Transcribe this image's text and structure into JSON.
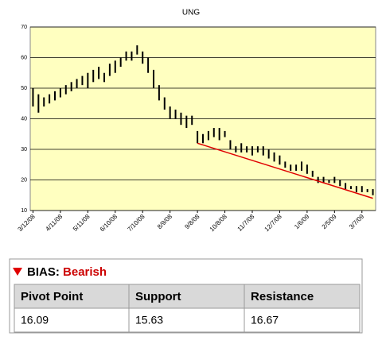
{
  "chart_data": {
    "type": "hilo",
    "title": "UNG",
    "categories": [
      "3/12/08",
      null,
      null,
      null,
      null,
      "4/11/08",
      null,
      null,
      null,
      null,
      "5/11/08",
      null,
      null,
      null,
      null,
      "6/10/08",
      null,
      null,
      null,
      null,
      "7/10/08",
      null,
      null,
      null,
      null,
      "8/9/08",
      null,
      null,
      null,
      null,
      "9/8/08",
      null,
      null,
      null,
      null,
      "10/8/08",
      null,
      null,
      null,
      null,
      "11/7/08",
      null,
      null,
      null,
      null,
      "12/7/08",
      null,
      null,
      null,
      null,
      "1/6/09",
      null,
      null,
      null,
      null,
      "2/5/09",
      null,
      null,
      null,
      null,
      "3/7/09",
      null,
      null
    ],
    "low": [
      44,
      42,
      44,
      45,
      46,
      47,
      48,
      49,
      50,
      51,
      50,
      52,
      53,
      52,
      54,
      55,
      57,
      59,
      59,
      61,
      58,
      55,
      50,
      46,
      43,
      40,
      40,
      38,
      37,
      38,
      32,
      32,
      33,
      34,
      33,
      34,
      30,
      29,
      29,
      29,
      28,
      29,
      28,
      27,
      26,
      25,
      24,
      23,
      23,
      23,
      22,
      21,
      19,
      19,
      19,
      19,
      18,
      17,
      17,
      16,
      16,
      16,
      15
    ],
    "high": [
      50,
      48,
      47,
      48,
      49,
      50,
      51,
      52,
      53,
      54,
      55,
      56,
      57,
      55,
      58,
      59,
      60,
      62,
      62,
      64,
      62,
      60,
      56,
      51,
      47,
      44,
      43,
      42,
      41,
      41,
      36,
      35,
      36,
      37,
      37,
      36,
      33,
      31,
      32,
      31,
      31,
      31,
      31,
      30,
      29,
      28,
      26,
      25,
      25,
      26,
      25,
      23,
      21,
      21,
      20,
      21,
      20,
      19,
      18,
      18,
      18,
      17,
      17
    ],
    "color": "#000000",
    "trend": {
      "color": "#e00000",
      "values": [
        null,
        null,
        null,
        null,
        null,
        null,
        null,
        null,
        null,
        null,
        null,
        null,
        null,
        null,
        null,
        null,
        null,
        null,
        null,
        null,
        null,
        null,
        null,
        null,
        null,
        null,
        null,
        null,
        null,
        null,
        32,
        null,
        null,
        null,
        null,
        null,
        null,
        null,
        null,
        null,
        null,
        null,
        null,
        null,
        null,
        null,
        null,
        null,
        null,
        null,
        null,
        null,
        null,
        null,
        null,
        null,
        null,
        null,
        null,
        null,
        null,
        null,
        14
      ]
    },
    "ylim": [
      10,
      70
    ],
    "yticks": [
      10,
      20,
      30,
      40,
      50,
      60,
      70
    ],
    "grid": true,
    "plot_background": "#ffffc0"
  },
  "bias": {
    "label": "BIAS:",
    "value": "Bearish"
  },
  "table": {
    "columns": [
      "Pivot Point",
      "Support",
      "Resistance"
    ],
    "rows": [
      [
        "16.09",
        "15.63",
        "16.67"
      ]
    ]
  }
}
